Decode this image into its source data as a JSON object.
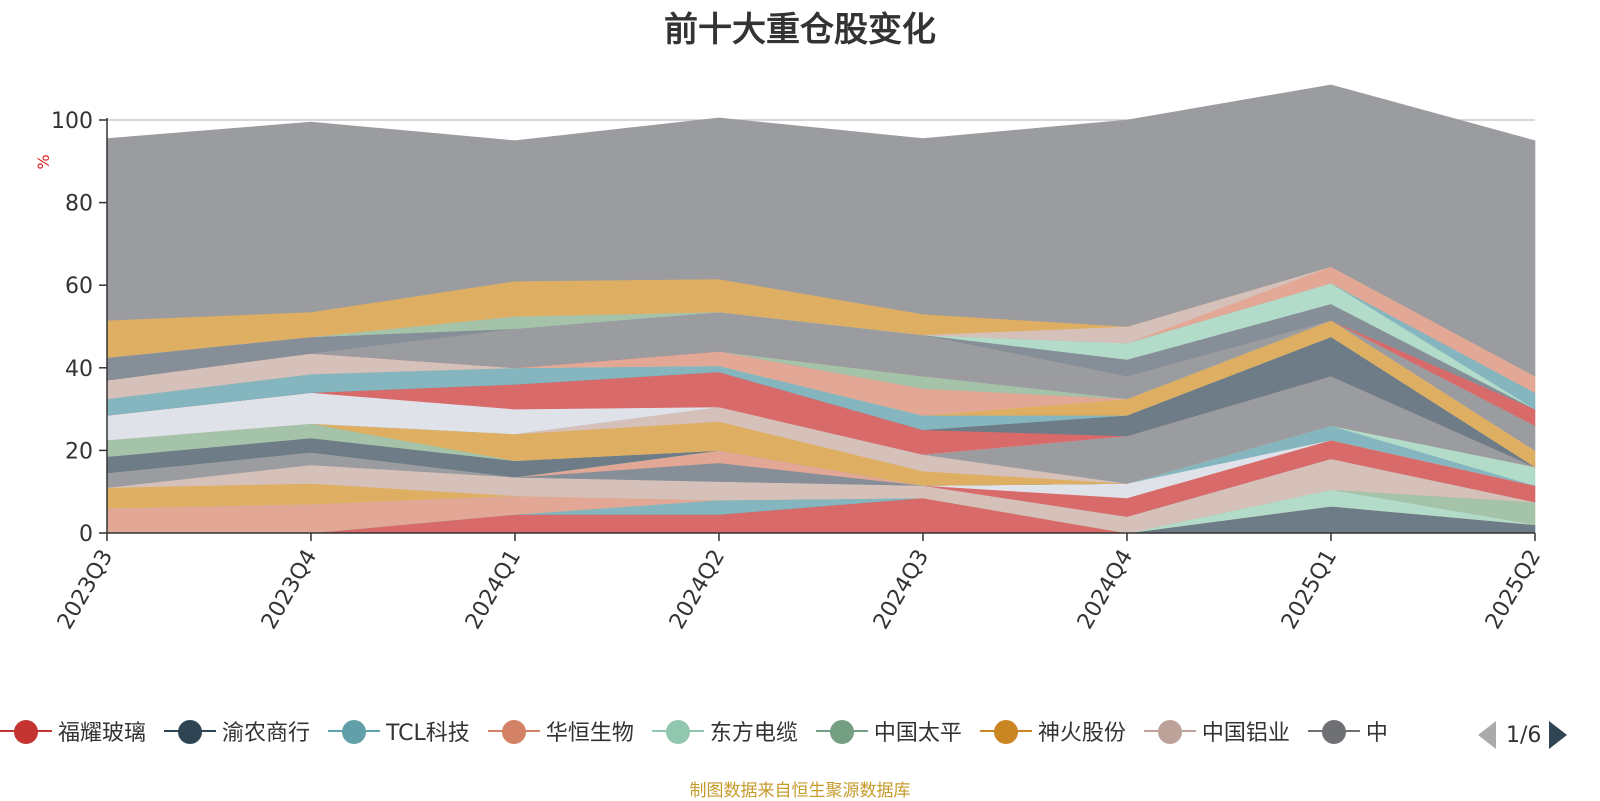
{
  "chart_data": {
    "type": "area",
    "title": "前十大重仓股变化",
    "ylabel": "%",
    "ylim": [
      0,
      100
    ],
    "yticks": [
      0,
      20,
      40,
      60,
      80,
      100
    ],
    "grid": true,
    "categories": [
      "2023Q3",
      "2023Q4",
      "2024Q1",
      "2024Q2",
      "2024Q3",
      "2024Q4",
      "2025Q1",
      "2025Q2"
    ],
    "series": [
      {
        "name": "福耀玻璃",
        "color": "#d86a6a",
        "values": [
          0,
          0,
          4.5,
          4.5,
          8.5,
          0,
          0,
          0
        ]
      },
      {
        "name": "渝农商行",
        "color": "#6d7c86",
        "values": [
          0,
          0,
          0,
          0,
          0,
          0,
          6.5,
          2
        ]
      },
      {
        "name": "TCL科技",
        "color": "#85b6bf",
        "values": [
          0,
          0,
          0,
          3.5,
          0,
          0,
          0,
          0
        ]
      },
      {
        "name": "华恒生物",
        "color": "#e3a895",
        "values": [
          6,
          7,
          4.5,
          0,
          0,
          0,
          0,
          0
        ]
      },
      {
        "name": "东方电缆",
        "color": "#b3dbc9",
        "values": [
          0,
          0,
          0,
          0,
          0,
          0,
          4,
          0
        ]
      },
      {
        "name": "中国太平",
        "color": "#a4c3a8",
        "values": [
          0,
          0,
          0,
          0,
          0,
          0,
          0,
          5.5
        ]
      },
      {
        "name": "神火股份",
        "color": "#deae62",
        "values": [
          5,
          5,
          0,
          0,
          0,
          0,
          0,
          0
        ]
      },
      {
        "name": "中国铝业",
        "color": "#d5c0ba",
        "values": [
          0,
          4.5,
          4.5,
          4.5,
          3,
          4,
          7.5,
          0
        ]
      },
      {
        "name": "",
        "color": "#9b9ca0",
        "values": [
          3.5,
          3,
          0,
          0,
          0,
          0,
          0,
          0
        ]
      },
      {
        "name": "",
        "color": "#868f98",
        "values": [
          0,
          0,
          0,
          4.5,
          0,
          0,
          0,
          0
        ]
      },
      {
        "name": "",
        "color": "#e3a895",
        "values": [
          0,
          0,
          0,
          3,
          0,
          0,
          0,
          0
        ]
      },
      {
        "name": "",
        "color": "#d86a6a",
        "values": [
          0,
          0,
          0,
          0,
          0,
          0,
          4.5,
          4
        ]
      },
      {
        "name": "",
        "color": "#d86a6a",
        "values": [
          0,
          0,
          0,
          0,
          0,
          4.5,
          0,
          0
        ]
      },
      {
        "name": "",
        "color": "#dfe2e8",
        "values": [
          0,
          0,
          0,
          0,
          0,
          3.5,
          0,
          0
        ]
      },
      {
        "name": "",
        "color": "#85b6bf",
        "values": [
          0,
          0,
          0,
          0,
          0,
          0,
          3.5,
          0
        ]
      },
      {
        "name": "",
        "color": "#b3dbc9",
        "values": [
          0,
          0,
          0,
          0,
          0,
          0,
          0,
          4.5
        ]
      },
      {
        "name": "",
        "color": "#a4c3a8",
        "values": [
          0,
          0,
          0,
          0,
          0,
          0,
          0,
          0
        ]
      },
      {
        "name": "",
        "color": "#6d7c86",
        "values": [
          4,
          3.5,
          4,
          0,
          0,
          0,
          0,
          0
        ]
      },
      {
        "name": "",
        "color": "#9b9ca0",
        "values": [
          0,
          0,
          0,
          0,
          0,
          0,
          0,
          0
        ]
      },
      {
        "name": "",
        "color": "#a4c3a8",
        "values": [
          4,
          3.5,
          0,
          0,
          0,
          0,
          0,
          0
        ]
      },
      {
        "name": "",
        "color": "#deae62",
        "values": [
          0,
          0,
          6.5,
          7,
          3.5,
          0,
          0,
          0
        ]
      },
      {
        "name": "",
        "color": "#d5c0ba",
        "values": [
          0,
          0,
          0,
          3.5,
          4,
          0,
          0,
          0
        ]
      },
      {
        "name": "",
        "color": "#9b9ca0",
        "values": [
          0,
          0,
          0,
          0,
          0,
          11.5,
          12,
          0
        ]
      },
      {
        "name": "",
        "color": "#dfe2e8",
        "values": [
          6,
          7.5,
          6,
          0,
          0,
          0,
          0,
          0
        ]
      },
      {
        "name": "",
        "color": "#d86a6a",
        "values": [
          0,
          0,
          6,
          8.5,
          6,
          0,
          0,
          0
        ]
      },
      {
        "name": "",
        "color": "#6d7c86",
        "values": [
          0,
          0,
          0,
          0,
          0,
          5,
          9.5,
          0
        ]
      },
      {
        "name": "",
        "color": "#85b6bf",
        "values": [
          4,
          4.5,
          4,
          1.5,
          3.5,
          0,
          0,
          0
        ]
      },
      {
        "name": "",
        "color": "#deae62",
        "values": [
          0,
          0,
          0,
          0,
          0,
          4,
          4,
          4
        ]
      },
      {
        "name": "",
        "color": "#b3dbc9",
        "values": [
          0,
          0,
          0,
          0,
          0,
          0,
          0,
          0
        ]
      },
      {
        "name": "",
        "color": "#e3a895",
        "values": [
          0,
          0,
          0,
          3.5,
          6.5,
          0,
          0,
          0
        ]
      },
      {
        "name": "",
        "color": "#9b9ca0",
        "values": [
          0,
          0,
          0,
          0,
          0,
          0,
          0,
          6
        ]
      },
      {
        "name": "",
        "color": "#a4c3a8",
        "values": [
          0,
          0,
          0,
          0,
          3,
          0,
          0,
          0
        ]
      },
      {
        "name": "",
        "color": "#d5c0ba",
        "values": [
          4.5,
          5,
          0,
          0,
          0,
          0,
          0,
          0
        ]
      },
      {
        "name": "",
        "color": "#9b9ca0",
        "values": [
          0,
          0,
          0,
          0,
          0,
          5.5,
          0,
          0
        ]
      },
      {
        "name": "",
        "color": "#d86a6a",
        "values": [
          0,
          0,
          0,
          0,
          0,
          0,
          0,
          4
        ]
      },
      {
        "name": "",
        "color": "#9b9ca0",
        "values": [
          0,
          0,
          9.5,
          9.5,
          10,
          0,
          0,
          0
        ]
      },
      {
        "name": "",
        "color": "#868f98",
        "values": [
          5.5,
          4,
          0,
          0,
          0,
          4,
          4,
          0
        ]
      },
      {
        "name": "",
        "color": "#b3dbc9",
        "values": [
          0,
          0,
          0,
          0,
          0,
          4,
          5,
          0
        ]
      },
      {
        "name": "",
        "color": "#85b6bf",
        "values": [
          0,
          0,
          0,
          0,
          0,
          0,
          0,
          4
        ]
      },
      {
        "name": "",
        "color": "#a4c3a8",
        "values": [
          0,
          0,
          3,
          0,
          0,
          0,
          0,
          0
        ]
      },
      {
        "name": "",
        "color": "#e3a895",
        "values": [
          0,
          0,
          0,
          0,
          0,
          0,
          4,
          4
        ]
      },
      {
        "name": "",
        "color": "#d5c0ba",
        "values": [
          0,
          0,
          0,
          0,
          0,
          4,
          0,
          0
        ]
      },
      {
        "name": "",
        "color": "#deae62",
        "values": [
          9,
          6,
          8.5,
          8,
          5,
          0,
          0,
          0
        ]
      },
      {
        "name": "",
        "color": "#9b9ca0",
        "values": [
          44,
          46,
          34,
          39,
          42.5,
          50,
          44,
          57
        ]
      }
    ]
  },
  "legend": {
    "items": [
      {
        "label": "福耀玻璃",
        "color": "#c23531"
      },
      {
        "label": "渝农商行",
        "color": "#2f4554"
      },
      {
        "label": "TCL科技",
        "color": "#61a0a8"
      },
      {
        "label": "华恒生物",
        "color": "#d48265"
      },
      {
        "label": "东方电缆",
        "color": "#91c7ae"
      },
      {
        "label": "中国太平",
        "color": "#749f83"
      },
      {
        "label": "神火股份",
        "color": "#ca8622"
      },
      {
        "label": "中国铝业",
        "color": "#bda29a"
      },
      {
        "label": "中",
        "color": "#6e7074"
      }
    ],
    "page_info": "1/6"
  },
  "source": "制图数据来自恒生聚源数据库"
}
